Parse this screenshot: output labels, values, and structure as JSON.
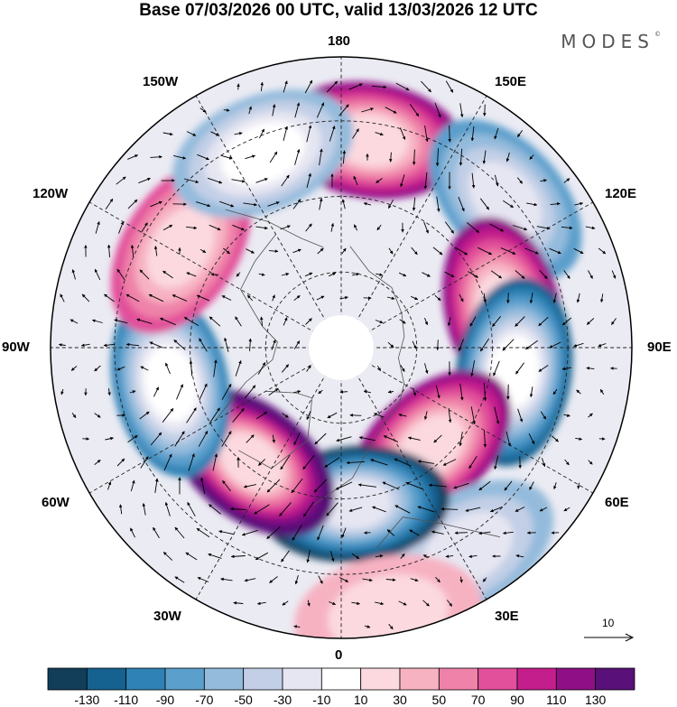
{
  "header": {
    "title": "Base 07/03/2026 00 UTC, valid 13/03/2026 12 UTC",
    "brand": "MODES",
    "brand_mark": "©"
  },
  "map": {
    "projection": "north-polar-stereographic",
    "longitude_labels": [
      {
        "id": "180",
        "text": "180",
        "lon": 180
      },
      {
        "id": "150e",
        "text": "150E",
        "lon": 150
      },
      {
        "id": "120e",
        "text": "120E",
        "lon": 120
      },
      {
        "id": "90e",
        "text": "90E",
        "lon": 90
      },
      {
        "id": "60e",
        "text": "60E",
        "lon": 60
      },
      {
        "id": "30e",
        "text": "30E",
        "lon": 30
      },
      {
        "id": "0",
        "text": "0",
        "lon": 0
      },
      {
        "id": "30w",
        "text": "30W",
        "lon": -30
      },
      {
        "id": "60w",
        "text": "60W",
        "lon": -60
      },
      {
        "id": "90w",
        "text": "90W",
        "lon": -90
      },
      {
        "id": "120w",
        "text": "120W",
        "lon": -120
      },
      {
        "id": "150w",
        "text": "150W",
        "lon": -150
      }
    ],
    "anomaly_centers": [
      {
        "lon": 172,
        "dist": 0.72,
        "value": 110
      },
      {
        "lon": 132,
        "dist": 0.76,
        "value": -80
      },
      {
        "lon": 103,
        "dist": 0.57,
        "value": 110
      },
      {
        "lon": 82,
        "dist": 0.6,
        "value": -130
      },
      {
        "lon": 42,
        "dist": 0.46,
        "value": 120
      },
      {
        "lon": 32,
        "dist": 0.82,
        "value": -60
      },
      {
        "lon": 5,
        "dist": 0.54,
        "value": -140
      },
      {
        "lon": -38,
        "dist": 0.5,
        "value": 150
      },
      {
        "lon": -78,
        "dist": 0.6,
        "value": -110
      },
      {
        "lon": -122,
        "dist": 0.65,
        "value": 80
      },
      {
        "lon": -158,
        "dist": 0.72,
        "value": -70
      },
      {
        "lon": 10,
        "dist": 0.93,
        "value": 30
      }
    ],
    "vector_scale_label": "10"
  },
  "colorbar": {
    "colors": [
      "#123e5a",
      "#15618f",
      "#2f82b5",
      "#5b9fcc",
      "#94bbdc",
      "#c2cfe6",
      "#e6e6f2",
      "#ffffff",
      "#fbd9df",
      "#f7b2c2",
      "#ef82a9",
      "#e24f9a",
      "#c41e8c",
      "#8f0f86",
      "#591078"
    ],
    "ticks": [
      "-130",
      "-110",
      "-90",
      "-70",
      "-50",
      "-30",
      "-10",
      "10",
      "30",
      "50",
      "70",
      "90",
      "110",
      "130"
    ]
  }
}
